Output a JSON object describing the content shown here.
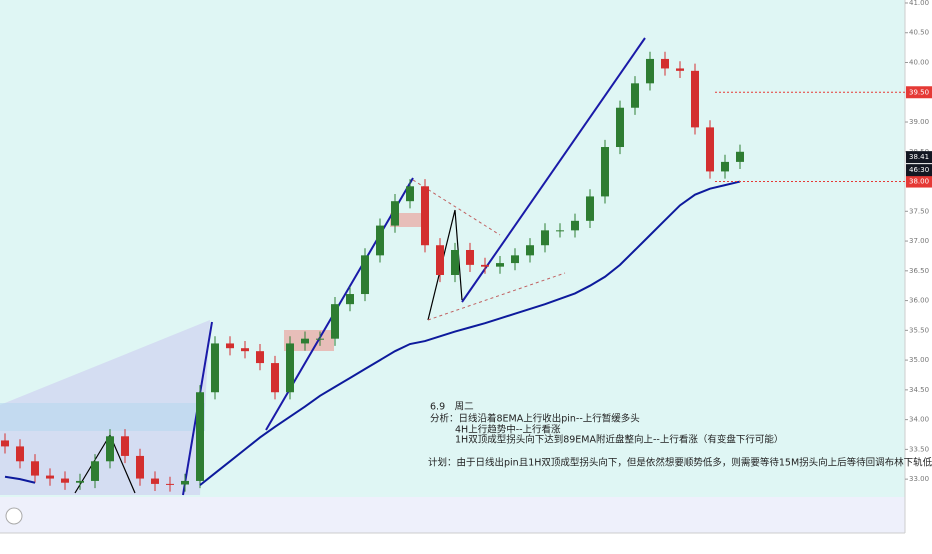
{
  "chart_data": {
    "type": "candlestick",
    "ylim": [
      32.7,
      41.05
    ],
    "yticks": [
      {
        "value": 33,
        "label": "33.00"
      },
      {
        "value": 33.5,
        "label": "33.50"
      },
      {
        "value": 34,
        "label": "34.00"
      },
      {
        "value": 34.5,
        "label": "34.50"
      },
      {
        "value": 35,
        "label": "35.00"
      },
      {
        "value": 35.5,
        "label": "35.50"
      },
      {
        "value": 36,
        "label": "36.00"
      },
      {
        "value": 36.5,
        "label": "36.50"
      },
      {
        "value": 37,
        "label": "37.00"
      },
      {
        "value": 37.5,
        "label": "37.50"
      },
      {
        "value": 38.5,
        "label": "38.50"
      },
      {
        "value": 39,
        "label": "39.00"
      },
      {
        "value": 40,
        "label": "40.00"
      },
      {
        "value": 40.5,
        "label": "40.50"
      },
      {
        "value": 41,
        "label": "41.00"
      }
    ],
    "up_color": "#2e7d32",
    "down_color": "#d32f2f",
    "open": [
      33.65,
      33.55,
      33.3,
      33.06,
      33.01,
      32.94,
      32.97,
      33.3,
      33.72,
      33.39,
      33.01,
      32.92,
      32.91,
      32.97,
      34.46,
      35.28,
      35.2,
      35.15,
      34.95,
      34.46,
      35.28,
      35.36,
      35.36,
      35.94,
      36.11,
      36.76,
      37.26,
      37.67,
      37.92,
      36.93,
      36.43,
      36.85,
      36.6,
      36.57,
      36.63,
      36.76,
      36.93,
      37.18,
      37.18,
      37.34,
      37.75,
      38.58,
      39.24,
      39.65,
      40.06,
      39.9,
      39.86,
      38.91,
      38.17,
      38.33
    ],
    "high": [
      33.77,
      33.67,
      33.42,
      33.18,
      33.13,
      33.09,
      33.42,
      33.84,
      33.84,
      33.51,
      33.13,
      33.04,
      33.09,
      34.58,
      35.4,
      35.4,
      35.32,
      35.27,
      35.07,
      35.4,
      35.48,
      35.48,
      36.06,
      36.23,
      36.88,
      37.38,
      37.79,
      38.04,
      38.04,
      37.05,
      36.97,
      36.97,
      36.72,
      36.75,
      36.88,
      37.05,
      37.3,
      37.3,
      37.46,
      37.87,
      38.7,
      39.36,
      39.77,
      40.18,
      40.18,
      40.02,
      39.98,
      39.03,
      38.45,
      38.62
    ],
    "low": [
      33.43,
      33.18,
      32.94,
      32.89,
      32.82,
      32.82,
      32.85,
      33.18,
      33.27,
      32.89,
      32.8,
      32.79,
      32.79,
      32.85,
      34.34,
      35.08,
      35.03,
      34.83,
      34.34,
      34.34,
      35.16,
      35.24,
      35.24,
      35.82,
      35.99,
      36.64,
      37.14,
      37.55,
      36.81,
      36.31,
      36.31,
      36.48,
      36.45,
      36.45,
      36.51,
      36.64,
      36.81,
      37.06,
      37.06,
      37.22,
      37.63,
      38.46,
      39.12,
      39.53,
      39.78,
      39.74,
      38.79,
      38.05,
      38.05,
      38.21
    ],
    "close": [
      33.55,
      33.3,
      33.06,
      33.01,
      32.94,
      32.97,
      33.3,
      33.72,
      33.39,
      33.01,
      32.92,
      32.91,
      32.97,
      34.46,
      35.28,
      35.2,
      35.15,
      34.95,
      34.46,
      35.28,
      35.36,
      35.36,
      35.94,
      36.11,
      36.76,
      37.26,
      37.67,
      37.92,
      36.93,
      36.43,
      36.85,
      36.6,
      36.57,
      36.63,
      36.76,
      36.93,
      37.18,
      37.18,
      37.34,
      37.75,
      38.58,
      39.24,
      39.65,
      40.06,
      39.9,
      39.86,
      38.91,
      38.17,
      38.33,
      38.5
    ],
    "ema": {
      "color": "#0d1a9c",
      "values": [
        33.04,
        33.0,
        32.94,
        null,
        null,
        null,
        null,
        null,
        null,
        null,
        null,
        null,
        null,
        32.9,
        33.1,
        33.3,
        33.5,
        33.7,
        33.88,
        34.05,
        34.22,
        34.4,
        34.55,
        34.7,
        34.85,
        35.0,
        35.15,
        35.27,
        35.32,
        35.4,
        35.48,
        35.55,
        35.62,
        35.7,
        35.78,
        35.86,
        35.94,
        36.03,
        36.12,
        36.25,
        36.4,
        36.6,
        36.85,
        37.1,
        37.35,
        37.6,
        37.78,
        37.88,
        37.94,
        38.0
      ]
    },
    "price_tags": [
      {
        "value": 39.5,
        "label": "39.50",
        "color": "#e53935"
      },
      {
        "value": 38.41,
        "label": "38.41",
        "color": "#131722"
      },
      {
        "value": 38.0,
        "label": "38.00",
        "color": "#e53935"
      }
    ],
    "countdown": "46:30",
    "annotations": [
      "6.9　周二",
      "分析：日线沿着8EMA上行收出pin--上行暂缓多头",
      "4H上行趋势中--上行看涨",
      "1H双顶成型拐头向下达到89EMA附近盘整向上--上行看涨（有变盘下行可能）",
      "计划：由于日线出pin且1H双顶成型拐头向下，但是依然想要顺势低多，则需要等待15M拐头向上后等待回调布林下轨低多"
    ]
  }
}
